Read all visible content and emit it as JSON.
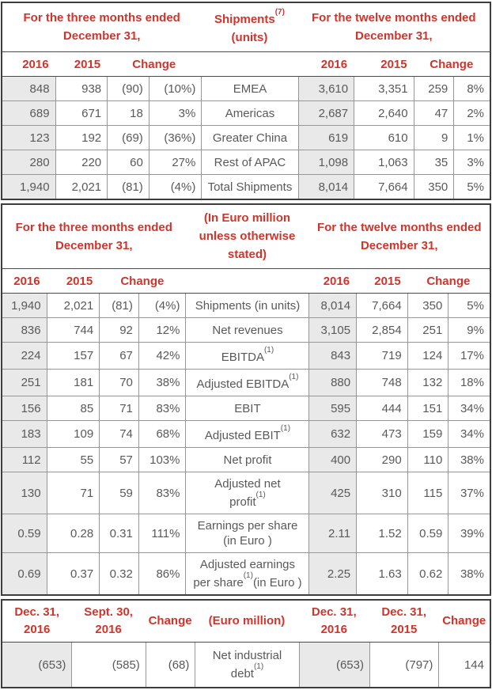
{
  "palette": {
    "red": "#ce352c",
    "text": "#595959",
    "grid": "#979797",
    "dark": "#4a4a4a",
    "shade": "#e9e9e9",
    "frame": "#3d3d3d"
  },
  "shipments_table": {
    "period_left_line1": "For the three months ended",
    "period_left_line2": "December 31,",
    "center_title": "Shipments",
    "center_title_sup": "(7)",
    "center_subtitle": "(units)",
    "period_right_line1": "For the twelve months ended",
    "period_right_line2": "December 31,",
    "col_year1": "2016",
    "col_year2": "2015",
    "col_change": "Change",
    "rows": [
      {
        "q": [
          "848",
          "938",
          "(90)",
          "(10%)"
        ],
        "label": "EMEA",
        "y": [
          "3,610",
          "3,351",
          "259",
          "8%"
        ]
      },
      {
        "q": [
          "689",
          "671",
          "18",
          "3%"
        ],
        "label": "Americas",
        "y": [
          "2,687",
          "2,640",
          "47",
          "2%"
        ]
      },
      {
        "q": [
          "123",
          "192",
          "(69)",
          "(36%)"
        ],
        "label": "Greater China",
        "y": [
          "619",
          "610",
          "9",
          "1%"
        ]
      },
      {
        "q": [
          "280",
          "220",
          "60",
          "27%"
        ],
        "label": "Rest of APAC",
        "y": [
          "1,098",
          "1,063",
          "35",
          "3%"
        ]
      },
      {
        "q": [
          "1,940",
          "2,021",
          "(81)",
          "(4%)"
        ],
        "label": "Total Shipments",
        "y": [
          "8,014",
          "7,664",
          "350",
          "5%"
        ]
      }
    ]
  },
  "financials_table": {
    "period_left_line1": "For the three months ended",
    "period_left_line2": "December 31,",
    "center_title_line1": "(In Euro million",
    "center_title_line2": "unless otherwise",
    "center_title_line3": "stated)",
    "period_right_line1": "For the twelve months ended",
    "period_right_line2": "December 31,",
    "col_year1": "2016",
    "col_year2": "2015",
    "col_change": "Change",
    "rows": [
      {
        "q": [
          "1,940",
          "2,021",
          "(81)",
          "(4%)"
        ],
        "label": "Shipments (in units)",
        "y": [
          "8,014",
          "7,664",
          "350",
          "5%"
        ]
      },
      {
        "q": [
          "836",
          "744",
          "92",
          "12%"
        ],
        "label": "Net revenues",
        "y": [
          "3,105",
          "2,854",
          "251",
          "9%"
        ]
      },
      {
        "q": [
          "224",
          "157",
          "67",
          "42%"
        ],
        "label": "EBITDA",
        "sup": "(1)",
        "y": [
          "843",
          "719",
          "124",
          "17%"
        ]
      },
      {
        "q": [
          "251",
          "181",
          "70",
          "38%"
        ],
        "label": "Adjusted EBITDA",
        "sup": "(1)",
        "y": [
          "880",
          "748",
          "132",
          "18%"
        ]
      },
      {
        "q": [
          "156",
          "85",
          "71",
          "83%"
        ],
        "label": "EBIT",
        "y": [
          "595",
          "444",
          "151",
          "34%"
        ]
      },
      {
        "q": [
          "183",
          "109",
          "74",
          "68%"
        ],
        "label": "Adjusted EBIT",
        "sup": "(1)",
        "y": [
          "632",
          "473",
          "159",
          "34%"
        ]
      },
      {
        "q": [
          "112",
          "55",
          "57",
          "103%"
        ],
        "label": "Net profit",
        "y": [
          "400",
          "290",
          "110",
          "38%"
        ]
      },
      {
        "q": [
          "130",
          "71",
          "59",
          "83%"
        ],
        "label": "Adjusted net",
        "label2": "profit",
        "sup2": "(1)",
        "y": [
          "425",
          "310",
          "115",
          "37%"
        ]
      },
      {
        "q": [
          "0.59",
          "0.28",
          "0.31",
          "111%"
        ],
        "label": "Earnings per share",
        "label2": "(in Euro )",
        "y": [
          "2.11",
          "1.52",
          "0.59",
          "39%"
        ]
      },
      {
        "q": [
          "0.69",
          "0.37",
          "0.32",
          "86%"
        ],
        "label": "Adjusted earnings",
        "label2": "per share",
        "sup2": "(1)",
        "suffix2": "(in Euro )",
        "y": [
          "2.25",
          "1.63",
          "0.62",
          "38%"
        ]
      }
    ]
  },
  "debt_table": {
    "headers": [
      {
        "l1": "Dec. 31,",
        "l2": "2016"
      },
      {
        "l1": "Sept. 30,",
        "l2": "2016"
      },
      {
        "l1": "Change"
      },
      {
        "l1": "(Euro million)"
      },
      {
        "l1": "Dec. 31,",
        "l2": "2016"
      },
      {
        "l1": "Dec. 31,",
        "l2": "2015"
      },
      {
        "l1": "Change"
      }
    ],
    "row": {
      "left": [
        "(653)",
        "(585)",
        "(68)"
      ],
      "label": "Net industrial",
      "label2": "debt",
      "sup2": "(1)",
      "right": [
        "(653)",
        "(797)",
        "144"
      ]
    }
  }
}
